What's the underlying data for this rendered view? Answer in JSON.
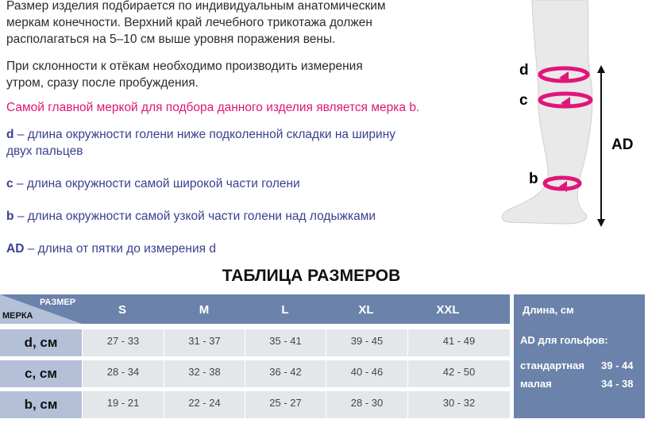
{
  "intro": {
    "p1_l1": "Размер изделия подбирается по индивидуальным анатомическим",
    "p1_l2": "меркам конечности. Верхний край лечебного трикотажа должен",
    "p1_l3": "располагаться на 5–10 см выше уровня поражения вены.",
    "p2_l1": "При склонности к отёкам необходимо производить измерения",
    "p2_l2": "утром, сразу после пробуждения.",
    "highlight": "Самой главной меркой для подбора данного изделия является мерка b."
  },
  "definitions": [
    {
      "key": "d",
      "text": " – длина окружности голени ниже подколенной складки на ширину",
      "text2": "двух пальцев"
    },
    {
      "key": "c",
      "text": " – длина окружности самой широкой части голени"
    },
    {
      "key": "b",
      "text": " – длина окружности самой узкой части голени над лодыжками"
    },
    {
      "key": "AD",
      "text": " – длина от пятки до измерения d"
    }
  ],
  "diagram": {
    "labels": {
      "d": "d",
      "c": "c",
      "b": "b",
      "ad": "AD"
    },
    "accent": "#e0157a"
  },
  "table": {
    "title": "ТАБЛИЦА РАЗМЕРОВ",
    "corner_size": "РАЗМЕР",
    "corner_measure": "МЕРКА",
    "sizes": [
      "S",
      "M",
      "L",
      "XL",
      "XXL"
    ],
    "rows": [
      {
        "label": "d, см",
        "values": [
          "27 - 33",
          "31 - 37",
          "35 - 41",
          "39 - 45",
          "41 - 49"
        ]
      },
      {
        "label": "c, см",
        "values": [
          "28 - 34",
          "32 - 38",
          "36 - 42",
          "40 - 46",
          "42 - 50"
        ]
      },
      {
        "label": "b, см",
        "values": [
          "19 - 21",
          "22 - 24",
          "25 - 27",
          "28 - 30",
          "30 - 32"
        ]
      }
    ],
    "length": {
      "title": "Длина, см",
      "subtitle": "AD для гольфов:",
      "standard_label": "стандартная",
      "standard_value": "39 - 44",
      "small_label": "малая",
      "small_value": "34 - 38"
    },
    "header_color": "#6b82ab",
    "label_color": "#b3c0d8",
    "cell_color": "#e4e7ea"
  }
}
